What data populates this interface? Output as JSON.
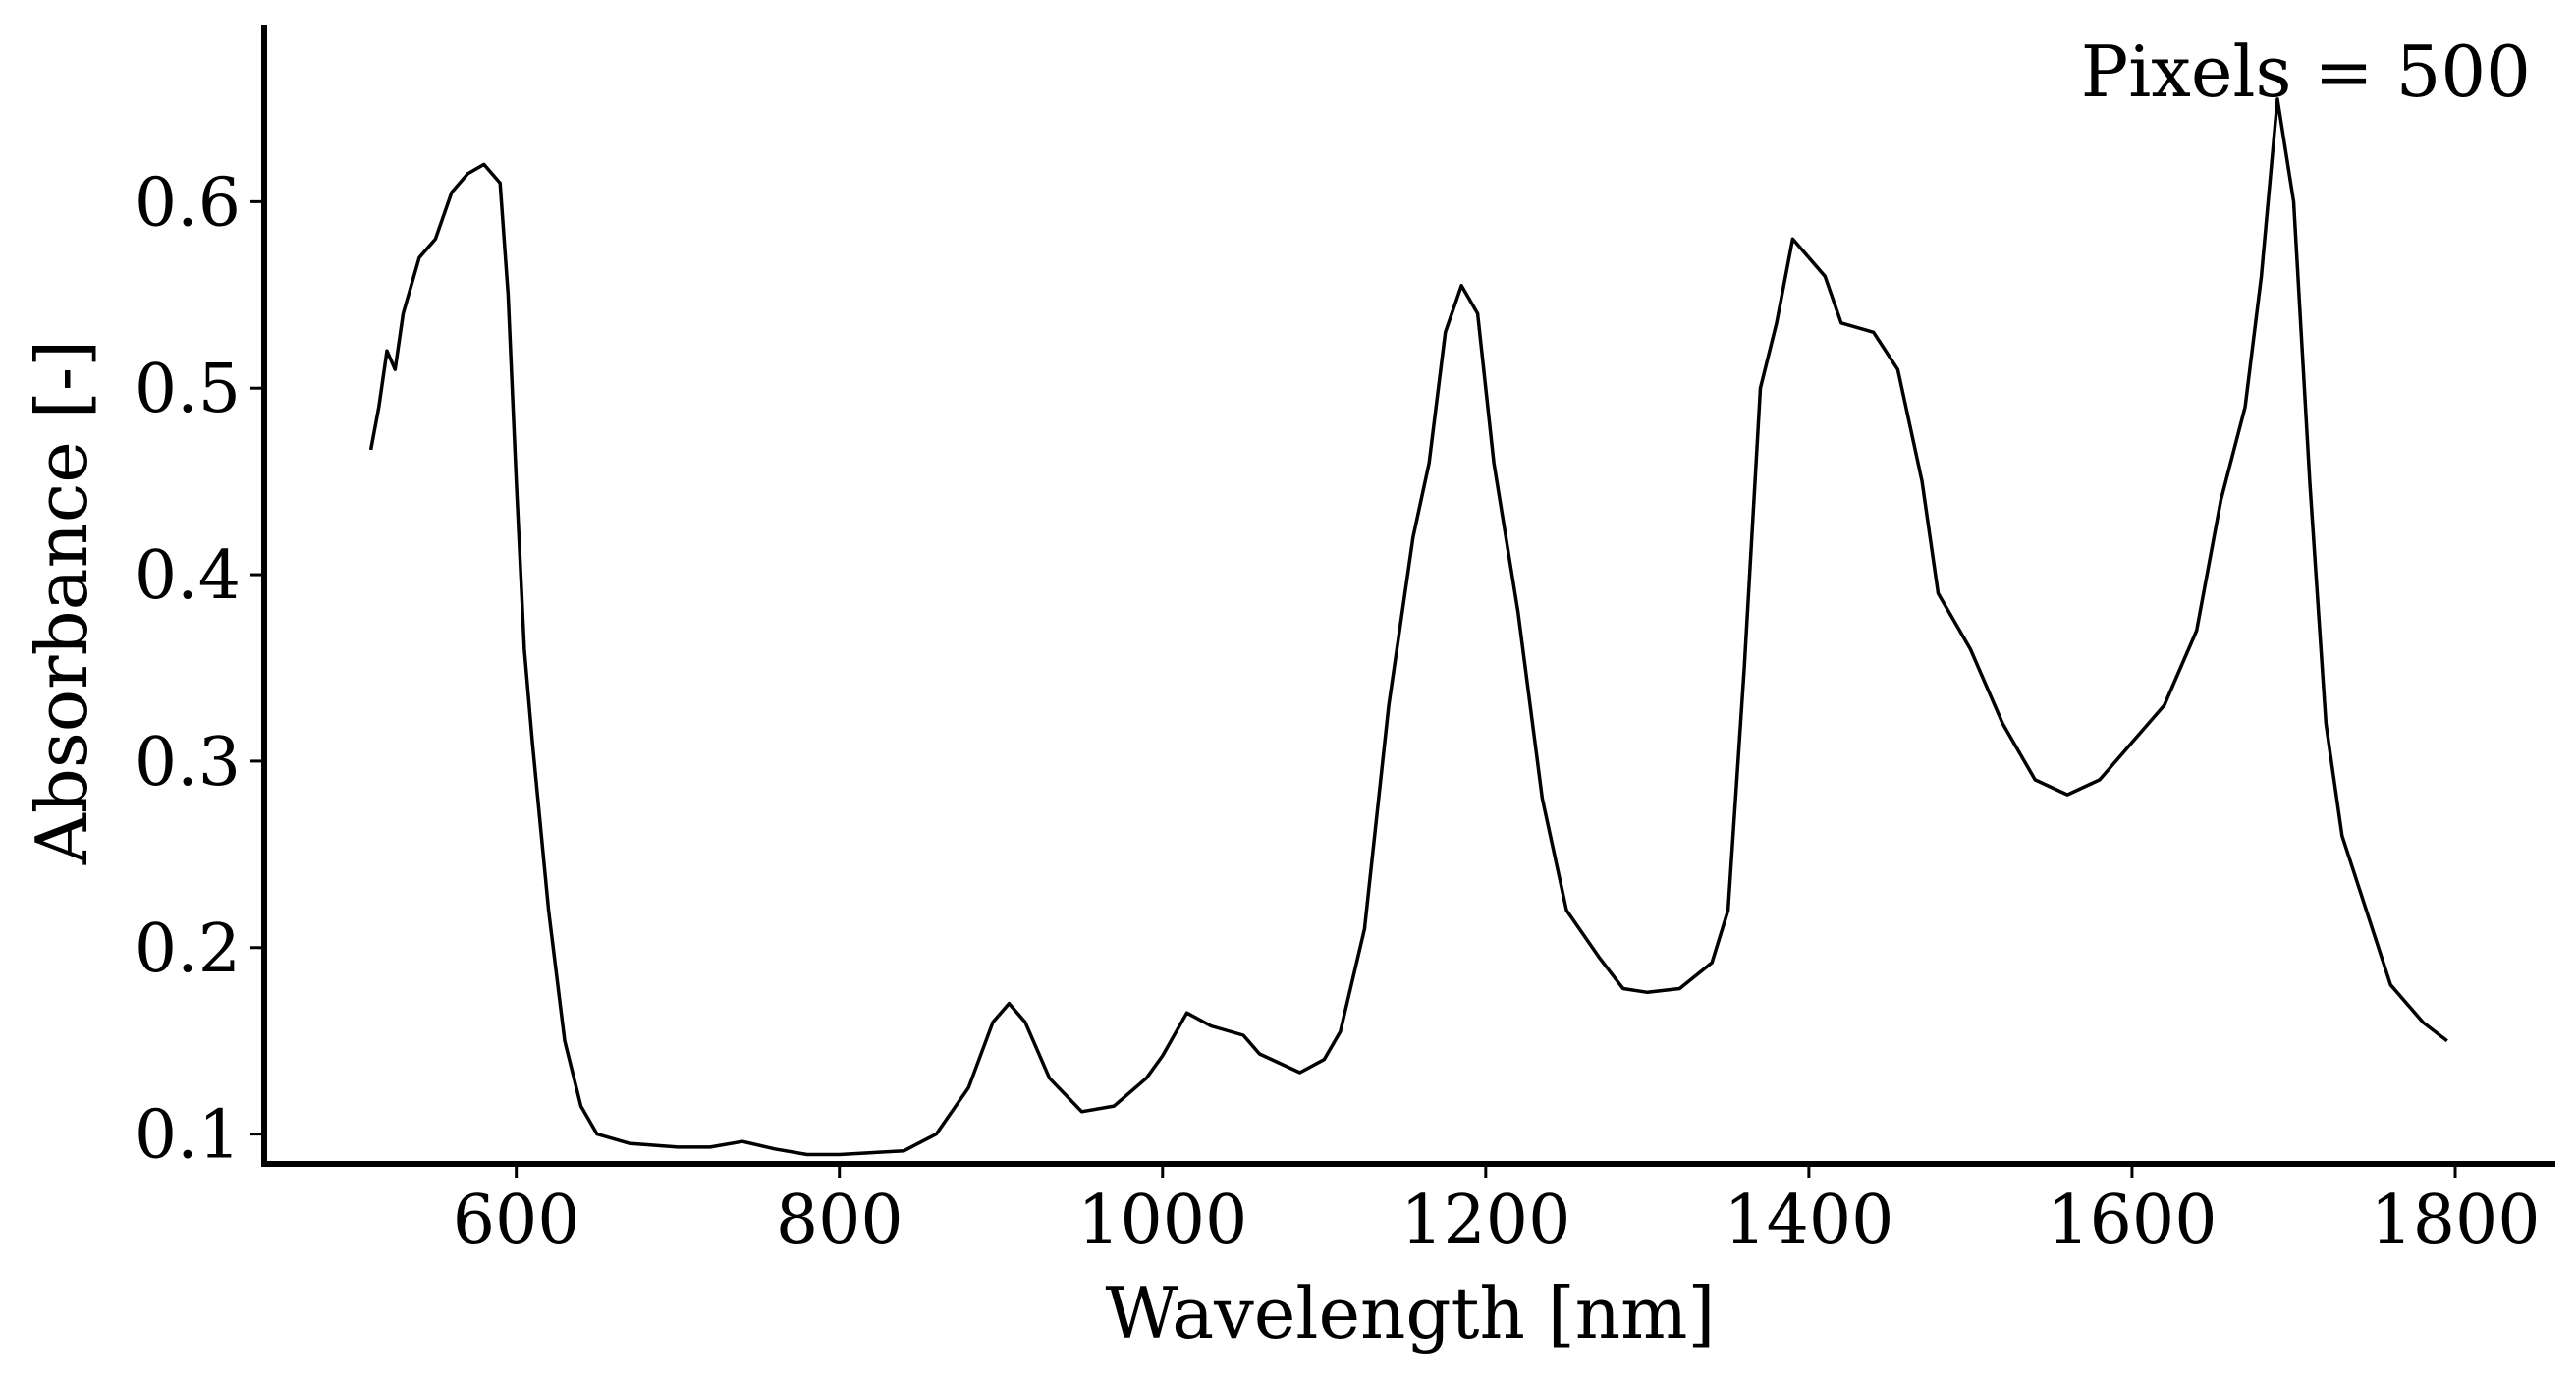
{
  "chart_data": {
    "type": "line",
    "xlabel": "Wavelength [nm]",
    "ylabel": "Absorbance [-]",
    "annotation": "Pixels = 500",
    "xlim": [
      444,
      1862
    ],
    "ylim": [
      0.084,
      0.695
    ],
    "xticks": [
      600,
      800,
      1000,
      1200,
      1400,
      1600,
      1800
    ],
    "yticks": [
      0.1,
      0.2,
      0.3,
      0.4,
      0.5,
      0.6
    ],
    "series": [
      {
        "color": "#000000",
        "x": [
          510,
          515,
          520,
          525,
          530,
          540,
          550,
          560,
          570,
          580,
          590,
          595,
          600,
          605,
          610,
          620,
          630,
          640,
          650,
          670,
          700,
          720,
          740,
          760,
          780,
          800,
          820,
          840,
          860,
          880,
          895,
          905,
          915,
          930,
          950,
          970,
          990,
          1000,
          1015,
          1030,
          1050,
          1060,
          1085,
          1100,
          1110,
          1125,
          1140,
          1155,
          1165,
          1175,
          1185,
          1195,
          1205,
          1220,
          1235,
          1250,
          1270,
          1285,
          1300,
          1320,
          1340,
          1350,
          1360,
          1370,
          1380,
          1390,
          1400,
          1410,
          1420,
          1440,
          1455,
          1470,
          1480,
          1500,
          1520,
          1540,
          1560,
          1580,
          1600,
          1620,
          1640,
          1655,
          1670,
          1680,
          1690,
          1700,
          1710,
          1720,
          1730,
          1745,
          1760,
          1780,
          1795
        ],
        "values": [
          0.467,
          0.49,
          0.52,
          0.51,
          0.54,
          0.57,
          0.58,
          0.605,
          0.615,
          0.62,
          0.61,
          0.55,
          0.45,
          0.36,
          0.31,
          0.22,
          0.15,
          0.115,
          0.1,
          0.095,
          0.093,
          0.093,
          0.096,
          0.092,
          0.089,
          0.089,
          0.09,
          0.091,
          0.1,
          0.125,
          0.16,
          0.17,
          0.16,
          0.13,
          0.112,
          0.115,
          0.13,
          0.142,
          0.165,
          0.158,
          0.153,
          0.143,
          0.133,
          0.14,
          0.155,
          0.21,
          0.33,
          0.42,
          0.46,
          0.53,
          0.555,
          0.54,
          0.46,
          0.38,
          0.28,
          0.22,
          0.195,
          0.178,
          0.176,
          0.178,
          0.192,
          0.22,
          0.35,
          0.5,
          0.535,
          0.58,
          0.57,
          0.56,
          0.535,
          0.53,
          0.51,
          0.45,
          0.39,
          0.36,
          0.32,
          0.29,
          0.282,
          0.29,
          0.31,
          0.33,
          0.37,
          0.44,
          0.49,
          0.56,
          0.655,
          0.6,
          0.45,
          0.32,
          0.26,
          0.22,
          0.18,
          0.16,
          0.15
        ]
      }
    ]
  }
}
